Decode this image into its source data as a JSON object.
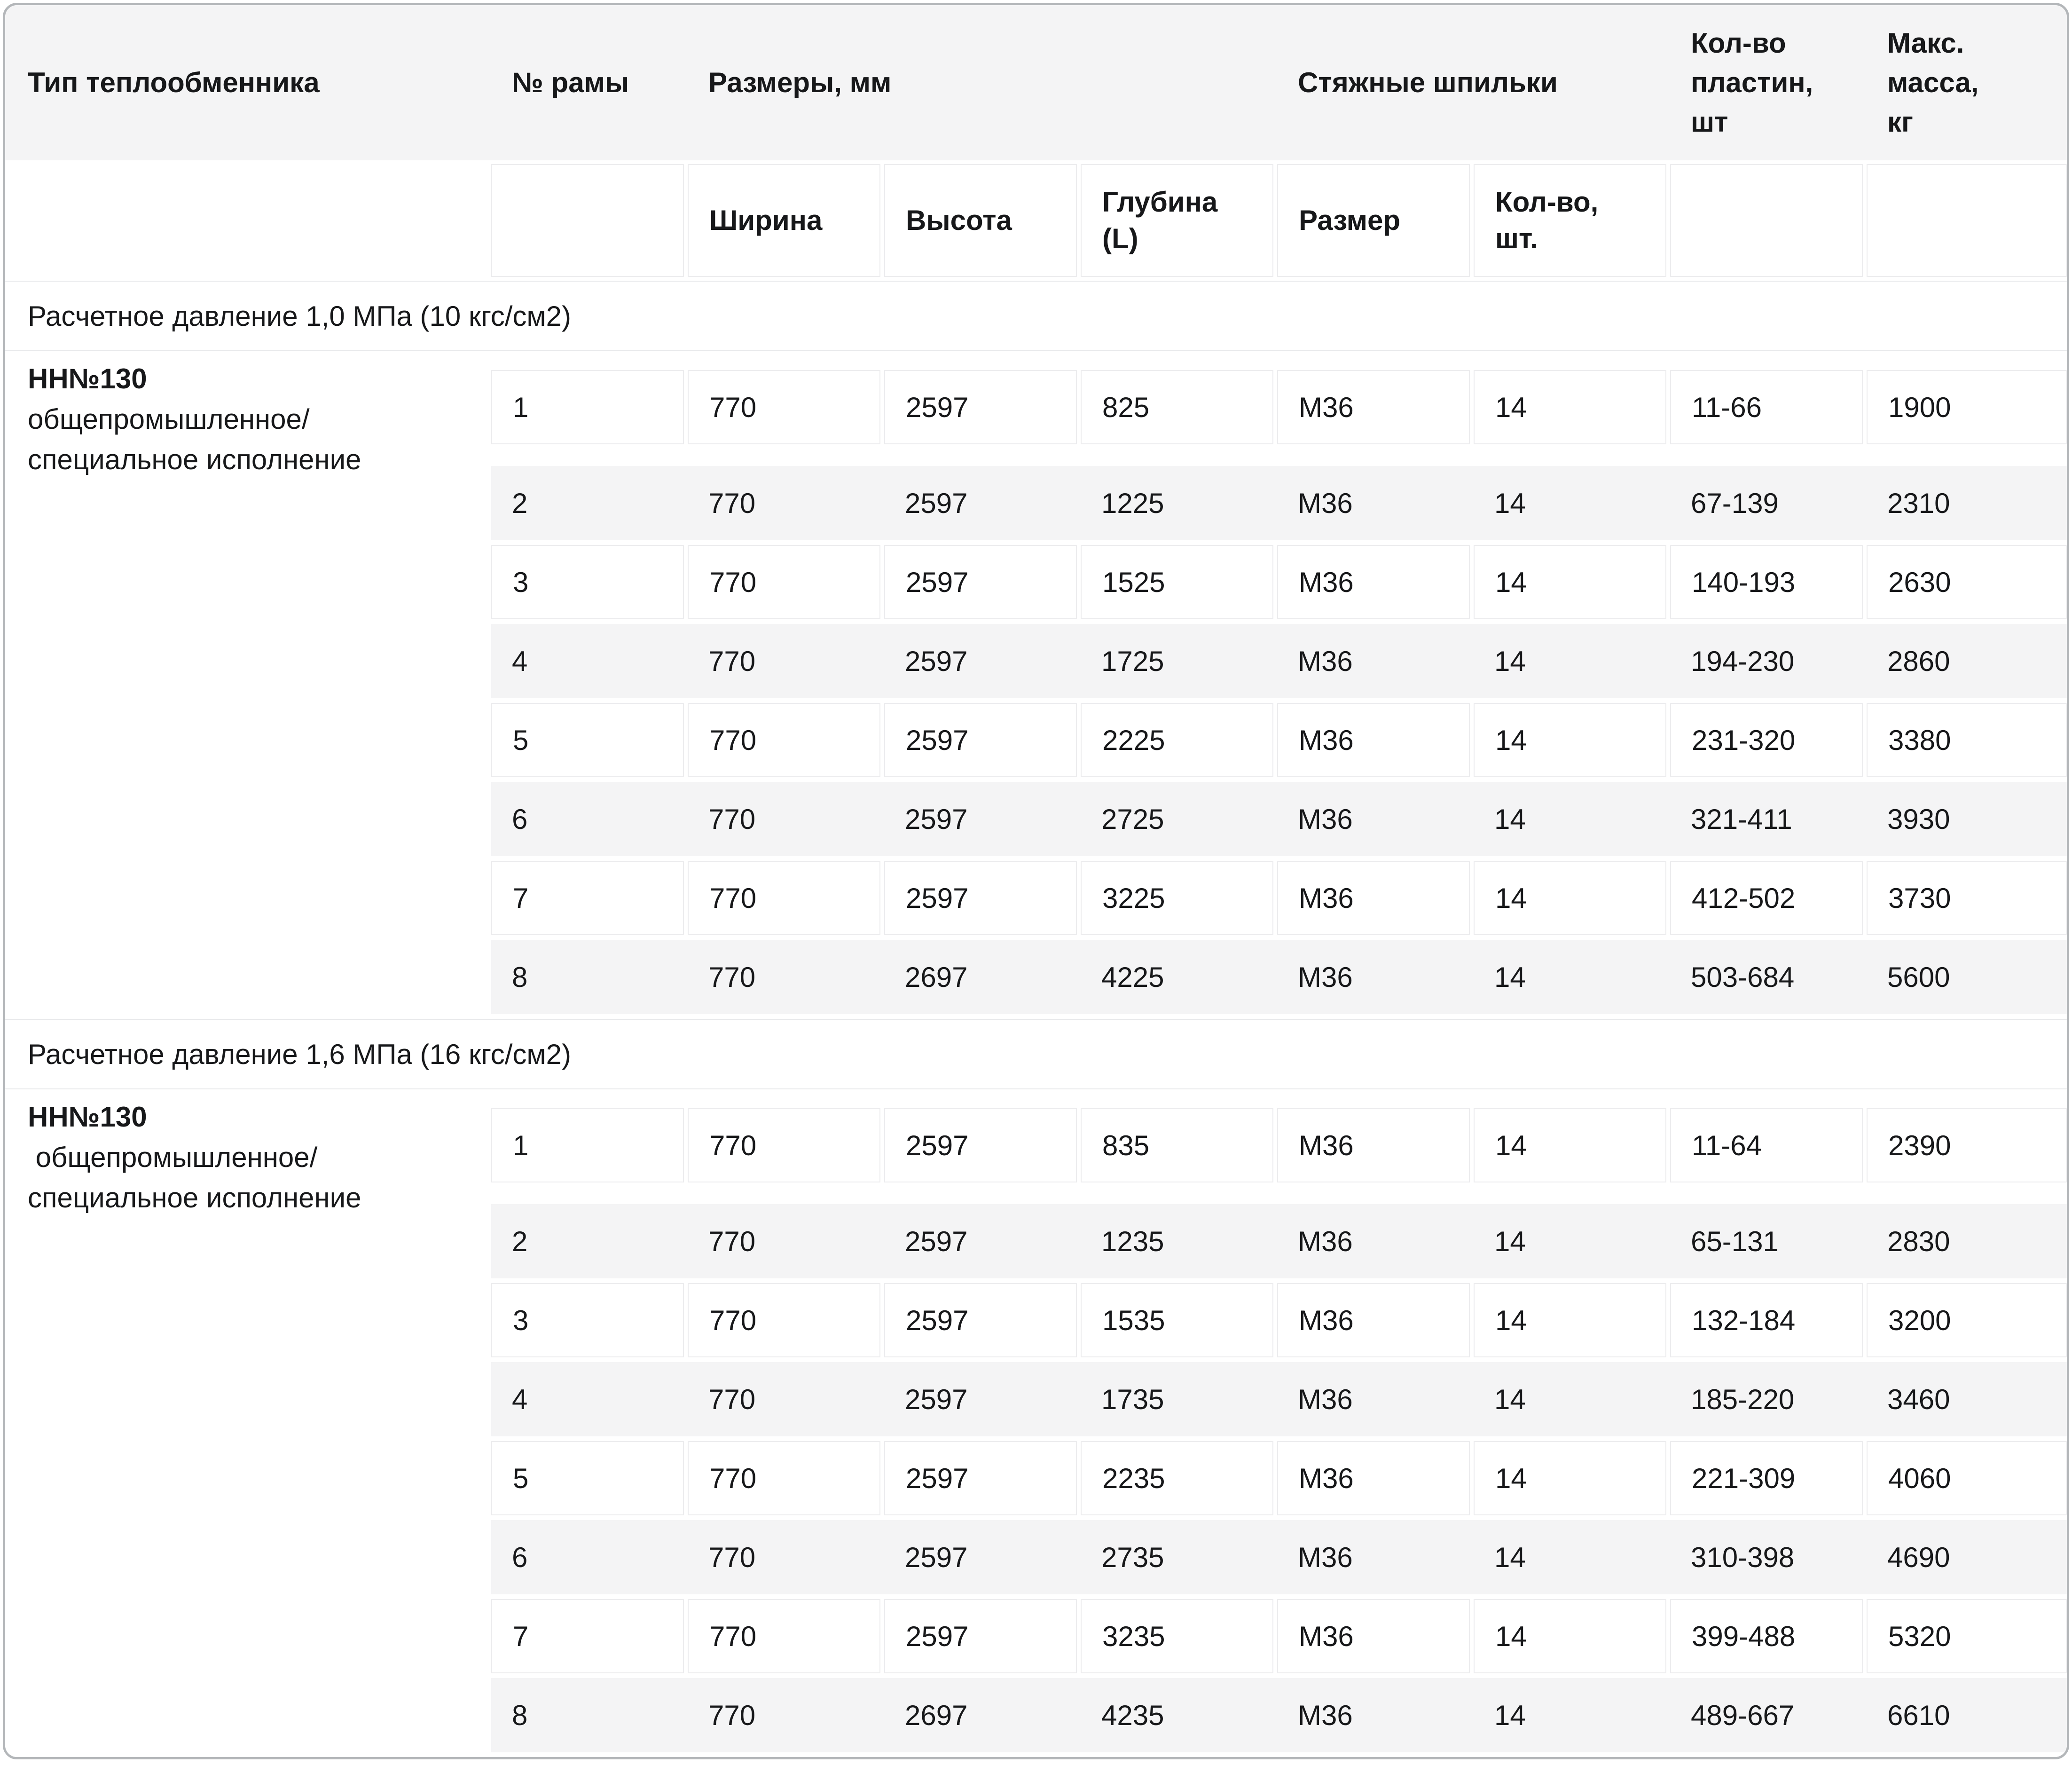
{
  "colors": {
    "header_bg": "#f4f4f5",
    "row_alt_bg": "#f4f4f5",
    "cell_border": "#ececee",
    "card_border": "#b3b6b9",
    "hairline": "#e8e9eb",
    "text": "#17181a"
  },
  "table": {
    "header": {
      "type": "Тип теплообменника",
      "frame": "№ рамы",
      "dimensions": "Размеры, мм",
      "studs": "Стяжные шпильки",
      "plates": "Кол-во пластин, шт",
      "mass": "Макс. масса, кг",
      "width": "Ширина",
      "height": "Высота",
      "depth": "Глубина (L)",
      "size": "Размер",
      "qty": "Кол-во, шт."
    },
    "sections": [
      {
        "title": "Расчетное давление 1,0 МПа (10 кгс/см2)",
        "type_title": "НН№130",
        "type_desc_lines": [
          "общепромышленное/",
          "специальное исполнение"
        ],
        "rows": [
          [
            "1",
            "770",
            "2597",
            "825",
            "М36",
            "14",
            "11-66",
            "1900"
          ],
          [
            "2",
            "770",
            "2597",
            "1225",
            "М36",
            "14",
            "67-139",
            "2310"
          ],
          [
            "3",
            "770",
            "2597",
            "1525",
            "М36",
            "14",
            "140-193",
            "2630"
          ],
          [
            "4",
            "770",
            "2597",
            "1725",
            "М36",
            "14",
            "194-230",
            "2860"
          ],
          [
            "5",
            "770",
            "2597",
            "2225",
            "М36",
            "14",
            "231-320",
            "3380"
          ],
          [
            "6",
            "770",
            "2597",
            "2725",
            "М36",
            "14",
            "321-411",
            "3930"
          ],
          [
            "7",
            "770",
            "2597",
            "3225",
            "М36",
            "14",
            "412-502",
            "3730"
          ],
          [
            "8",
            "770",
            "2697",
            "4225",
            "М36",
            "14",
            "503-684",
            "5600"
          ]
        ]
      },
      {
        "title": "Расчетное давление 1,6 МПа (16 кгс/см2)",
        "type_title": "НН№130",
        "type_desc_lines": [
          " общепромышленное/",
          "специальное исполнение"
        ],
        "rows": [
          [
            "1",
            "770",
            "2597",
            "835",
            "М36",
            "14",
            "11-64",
            "2390"
          ],
          [
            "2",
            "770",
            "2597",
            "1235",
            "М36",
            "14",
            "65-131",
            "2830"
          ],
          [
            "3",
            "770",
            "2597",
            "1535",
            "М36",
            "14",
            "132-184",
            "3200"
          ],
          [
            "4",
            "770",
            "2597",
            "1735",
            "М36",
            "14",
            "185-220",
            "3460"
          ],
          [
            "5",
            "770",
            "2597",
            "2235",
            "М36",
            "14",
            "221-309",
            "4060"
          ],
          [
            "6",
            "770",
            "2597",
            "2735",
            "М36",
            "14",
            "310-398",
            "4690"
          ],
          [
            "7",
            "770",
            "2597",
            "3235",
            "М36",
            "14",
            "399-488",
            "5320"
          ],
          [
            "8",
            "770",
            "2697",
            "4235",
            "М36",
            "14",
            "489-667",
            "6610"
          ]
        ]
      }
    ]
  }
}
